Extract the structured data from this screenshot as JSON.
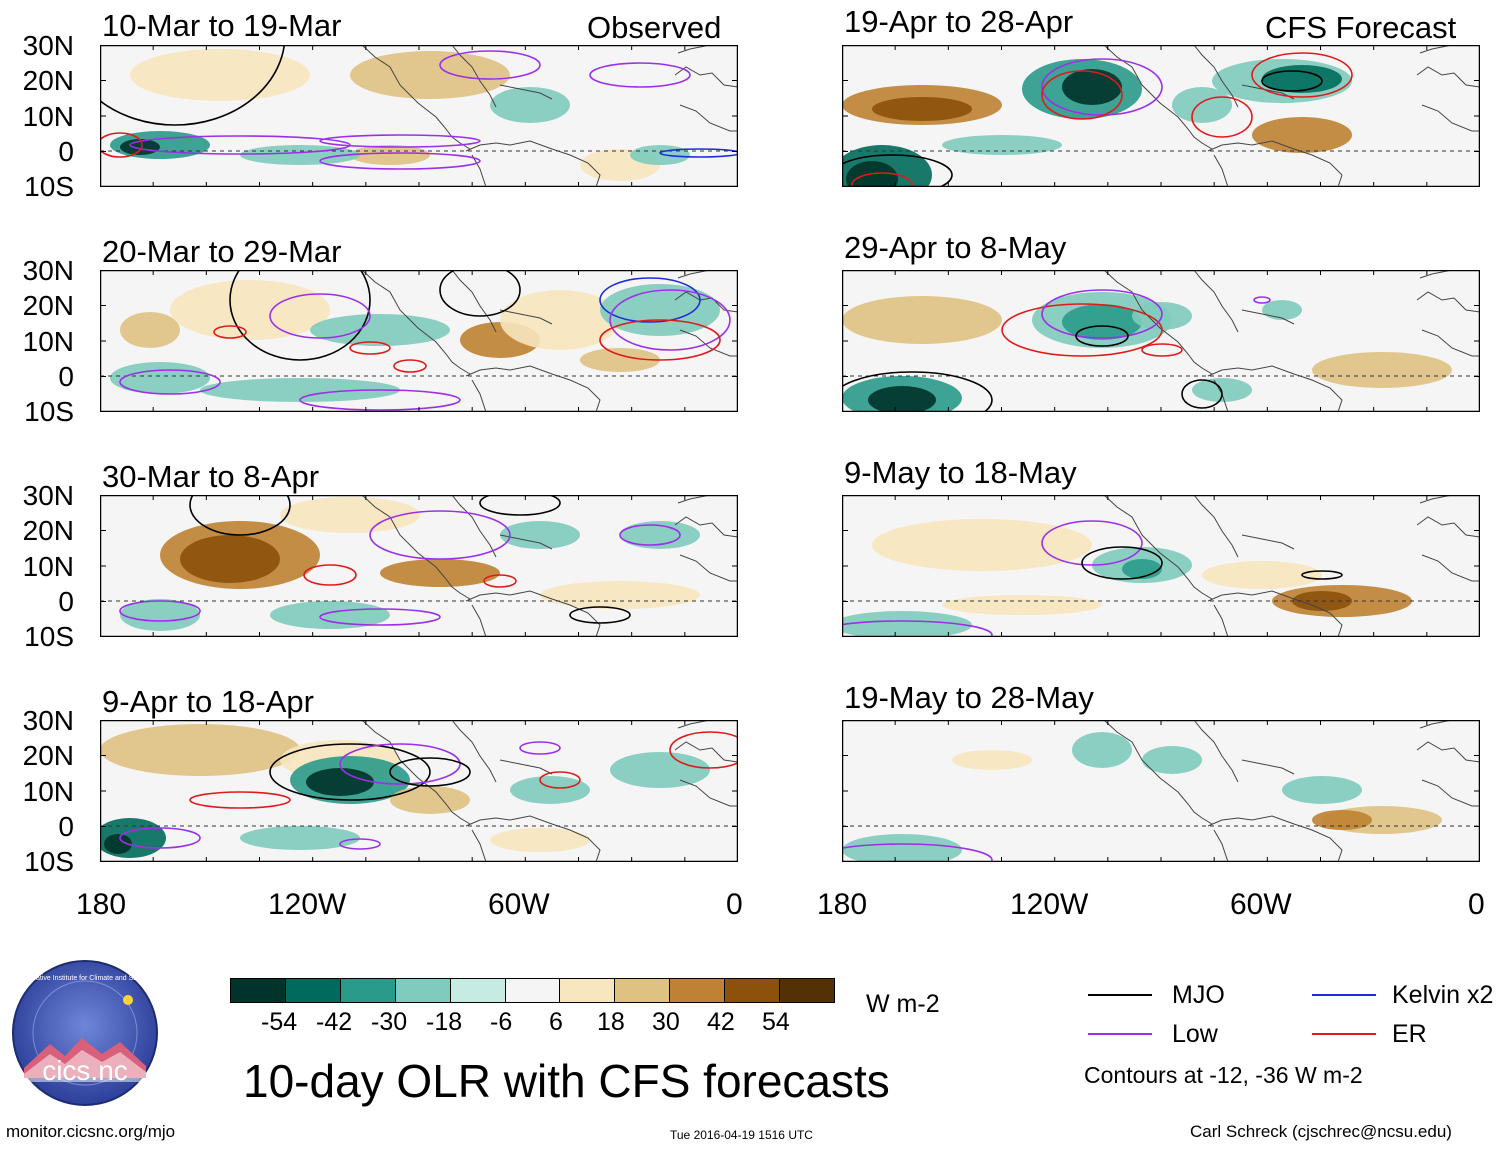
{
  "figure": {
    "main_title": "10-day OLR with CFS forecasts",
    "url_text": "monitor.cicsnc.org/mjo",
    "timestamp": "Tue 2016-04-19 1516 UTC",
    "author": "Carl Schreck (cjschrec@ncsu.edu)",
    "logo_text": "cics.nc",
    "logo_ring_text": "Cooperative Institute for Climate and Satellites"
  },
  "columns": {
    "left_label": "Observed",
    "right_label": "CFS Forecast"
  },
  "panels": [
    {
      "title": "10-Mar to 19-Mar"
    },
    {
      "title": "20-Mar to 29-Mar"
    },
    {
      "title": "30-Mar to 8-Apr"
    },
    {
      "title": "9-Apr to 18-Apr"
    },
    {
      "title": "19-Apr to 28-Apr"
    },
    {
      "title": "29-Apr to 8-May"
    },
    {
      "title": "9-May to 18-May"
    },
    {
      "title": "19-May to 28-May"
    }
  ],
  "axes": {
    "lat_labels": [
      "30N",
      "20N",
      "10N",
      "0",
      "10S"
    ],
    "lon_labels": [
      "180",
      "120W",
      "60W",
      "0"
    ]
  },
  "colorbar": {
    "units": "W m-2",
    "colors": [
      "#00332a",
      "#006b5c",
      "#2a9a8a",
      "#7fcbbd",
      "#c6ebe3",
      "#f5f5f5",
      "#f7e6be",
      "#dfc182",
      "#bf8232",
      "#8c510a",
      "#543005"
    ],
    "tick_labels": [
      "-54",
      "-42",
      "-30",
      "-18",
      "-6",
      "6",
      "18",
      "30",
      "42",
      "54"
    ]
  },
  "legend": {
    "items": [
      {
        "label": "MJO",
        "color": "#000000"
      },
      {
        "label": "Kelvin x2",
        "color": "#1f2dd6"
      },
      {
        "label": "Low",
        "color": "#9b30e6"
      },
      {
        "label": "ER",
        "color": "#e01a1a"
      }
    ],
    "note": "Contours at -12, -36 W m-2"
  }
}
